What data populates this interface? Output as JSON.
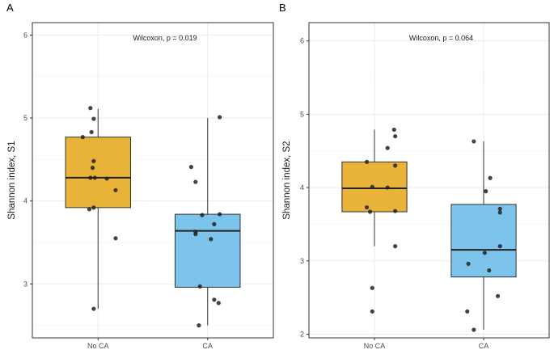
{
  "chart_data": [
    {
      "type": "box",
      "panel_tag": "A",
      "ylabel": "Shannon index, S1",
      "xlabel": "",
      "categories": [
        "No CA",
        "CA"
      ],
      "ylim": [
        2.35,
        6.15
      ],
      "yticks": [
        3,
        4,
        5,
        6
      ],
      "annotation": "Wilcoxon, p = 0.019",
      "colors": {
        "No CA": "#E9B33A",
        "CA": "#7DC4EC"
      },
      "boxes": [
        {
          "category": "No CA",
          "min": 2.7,
          "q1": 3.92,
          "median": 4.28,
          "q3": 4.77,
          "max": 5.11
        },
        {
          "category": "CA",
          "min": 2.5,
          "q1": 2.96,
          "median": 3.64,
          "q3": 3.84,
          "max": 5.0
        }
      ],
      "points": [
        {
          "category": "No CA",
          "x": 0.86,
          "y": 4.77
        },
        {
          "category": "No CA",
          "x": 0.93,
          "y": 5.12
        },
        {
          "category": "No CA",
          "x": 0.94,
          "y": 4.83
        },
        {
          "category": "No CA",
          "x": 0.96,
          "y": 4.99
        },
        {
          "category": "No CA",
          "x": 0.96,
          "y": 4.48
        },
        {
          "category": "No CA",
          "x": 0.95,
          "y": 4.4
        },
        {
          "category": "No CA",
          "x": 0.93,
          "y": 4.28
        },
        {
          "category": "No CA",
          "x": 0.97,
          "y": 4.28
        },
        {
          "category": "No CA",
          "x": 1.08,
          "y": 4.27
        },
        {
          "category": "No CA",
          "x": 1.16,
          "y": 4.13
        },
        {
          "category": "No CA",
          "x": 0.92,
          "y": 3.9
        },
        {
          "category": "No CA",
          "x": 0.96,
          "y": 3.92
        },
        {
          "category": "No CA",
          "x": 1.16,
          "y": 3.55
        },
        {
          "category": "No CA",
          "x": 0.96,
          "y": 2.7
        },
        {
          "category": "CA",
          "x": 1.85,
          "y": 4.41
        },
        {
          "category": "CA",
          "x": 1.89,
          "y": 4.23
        },
        {
          "category": "CA",
          "x": 1.95,
          "y": 3.83
        },
        {
          "category": "CA",
          "x": 2.11,
          "y": 3.84
        },
        {
          "category": "CA",
          "x": 2.06,
          "y": 3.72
        },
        {
          "category": "CA",
          "x": 1.89,
          "y": 3.63
        },
        {
          "category": "CA",
          "x": 1.89,
          "y": 3.6
        },
        {
          "category": "CA",
          "x": 2.03,
          "y": 3.54
        },
        {
          "category": "CA",
          "x": 1.93,
          "y": 2.97
        },
        {
          "category": "CA",
          "x": 2.06,
          "y": 2.81
        },
        {
          "category": "CA",
          "x": 2.1,
          "y": 2.77
        },
        {
          "category": "CA",
          "x": 1.92,
          "y": 2.5
        },
        {
          "category": "CA",
          "x": 2.11,
          "y": 5.01
        }
      ]
    },
    {
      "type": "box",
      "panel_tag": "B",
      "ylabel": "Shannon index, S2",
      "xlabel": "",
      "categories": [
        "No CA",
        "CA"
      ],
      "ylim": [
        1.95,
        6.25
      ],
      "yticks": [
        2,
        3,
        4,
        5,
        6
      ],
      "annotation": "Wilcoxon, p = 0.064",
      "colors": {
        "No CA": "#E9B33A",
        "CA": "#7DC4EC"
      },
      "boxes": [
        {
          "category": "No CA",
          "min": 3.2,
          "q1": 3.67,
          "median": 3.99,
          "q3": 4.35,
          "max": 4.79
        },
        {
          "category": "CA",
          "min": 2.06,
          "q1": 2.78,
          "median": 3.15,
          "q3": 3.77,
          "max": 4.63
        }
      ],
      "points": [
        {
          "category": "No CA",
          "x": 1.18,
          "y": 4.79
        },
        {
          "category": "No CA",
          "x": 1.19,
          "y": 4.7
        },
        {
          "category": "No CA",
          "x": 1.12,
          "y": 4.54
        },
        {
          "category": "No CA",
          "x": 0.93,
          "y": 4.35
        },
        {
          "category": "No CA",
          "x": 1.19,
          "y": 4.3
        },
        {
          "category": "No CA",
          "x": 0.98,
          "y": 4.01
        },
        {
          "category": "No CA",
          "x": 1.12,
          "y": 4.0
        },
        {
          "category": "No CA",
          "x": 0.93,
          "y": 3.73
        },
        {
          "category": "No CA",
          "x": 0.96,
          "y": 3.67
        },
        {
          "category": "No CA",
          "x": 1.19,
          "y": 3.68
        },
        {
          "category": "No CA",
          "x": 1.19,
          "y": 3.2
        },
        {
          "category": "No CA",
          "x": 0.98,
          "y": 2.63
        },
        {
          "category": "No CA",
          "x": 0.98,
          "y": 2.31
        },
        {
          "category": "CA",
          "x": 1.91,
          "y": 4.63
        },
        {
          "category": "CA",
          "x": 2.06,
          "y": 4.13
        },
        {
          "category": "CA",
          "x": 2.02,
          "y": 3.95
        },
        {
          "category": "CA",
          "x": 2.15,
          "y": 3.71
        },
        {
          "category": "CA",
          "x": 2.15,
          "y": 3.66
        },
        {
          "category": "CA",
          "x": 2.15,
          "y": 3.2
        },
        {
          "category": "CA",
          "x": 2.01,
          "y": 3.11
        },
        {
          "category": "CA",
          "x": 1.86,
          "y": 2.96
        },
        {
          "category": "CA",
          "x": 2.05,
          "y": 2.87
        },
        {
          "category": "CA",
          "x": 2.13,
          "y": 2.52
        },
        {
          "category": "CA",
          "x": 1.85,
          "y": 2.31
        },
        {
          "category": "CA",
          "x": 1.91,
          "y": 2.06
        }
      ]
    }
  ]
}
